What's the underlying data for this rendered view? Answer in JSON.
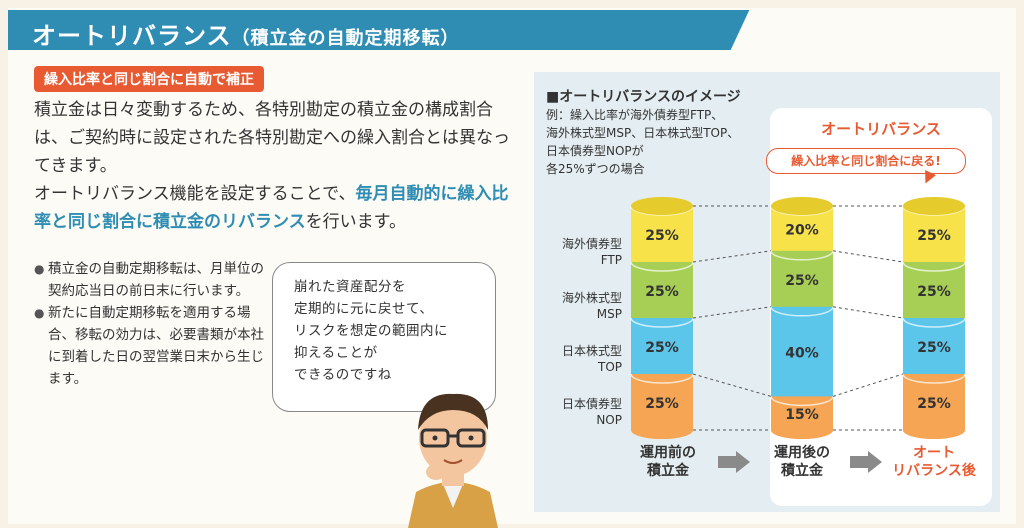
{
  "header": {
    "title_main": "オートリバランス",
    "title_sub": "（積立金の自動定期移転）"
  },
  "tag": "繰入比率と同じ割合に自動で補正",
  "paragraph": {
    "p1": "積立金は日々変動するため、各特別勘定の積立金の構成割合は、ご契約時に設定された各特別勘定への繰入割合とは異なってきます。",
    "p2_a": "オートリバランス機能を設定することで、",
    "p2_highlight": "毎月自動的に繰入比率と同じ割合に積立金のリバランス",
    "p2_b": "を行います。"
  },
  "bullets": [
    "積立金の自動定期移転は、月単位の契約応当日の前日末に行います。",
    "新たに自動定期移転を適用する場合、移転の効力は、必要書類が本社に到着した日の翌営業日末から生じます。"
  ],
  "bubble": {
    "lines": [
      "崩れた資産配分を",
      "定期的に元に戻せて、",
      "リスクを想定の範囲内に",
      "抑えることが",
      "できるのですね"
    ]
  },
  "diagram": {
    "title": "■オートリバランスのイメージ",
    "note_lines": [
      "例：繰入比率が海外債券型FTP、",
      "海外株式型MSP、日本株式型TOP、",
      "日本債券型NOPが",
      "各25%ずつの場合"
    ],
    "rebalance_label": "オートリバランス",
    "callout": "繰入比率と同じ割合に戻る!",
    "row_labels": [
      {
        "line1": "海外債券型",
        "line2": "FTP"
      },
      {
        "line1": "海外株式型",
        "line2": "MSP"
      },
      {
        "line1": "日本株式型",
        "line2": "TOP"
      },
      {
        "line1": "日本債券型",
        "line2": "NOP"
      }
    ],
    "colors": {
      "ftp": "#f7e24a",
      "msp": "#a8cf55",
      "top": "#5cc6ea",
      "nop": "#f5a553",
      "arrow": "#8a8a8a",
      "accent": "#e85a32",
      "blue": "#2f8db3"
    },
    "columns": [
      {
        "label1": "運用前の",
        "label2": "積立金",
        "label_color": "#333333",
        "segments": [
          {
            "key": "ftp",
            "value": 25,
            "text": "25%"
          },
          {
            "key": "msp",
            "value": 25,
            "text": "25%"
          },
          {
            "key": "top",
            "value": 25,
            "text": "25%"
          },
          {
            "key": "nop",
            "value": 25,
            "text": "25%"
          }
        ]
      },
      {
        "label1": "運用後の",
        "label2": "積立金",
        "label_color": "#333333",
        "segments": [
          {
            "key": "ftp",
            "value": 20,
            "text": "20%"
          },
          {
            "key": "msp",
            "value": 25,
            "text": "25%"
          },
          {
            "key": "top",
            "value": 40,
            "text": "40%"
          },
          {
            "key": "nop",
            "value": 15,
            "text": "15%"
          }
        ]
      },
      {
        "label1": "オート",
        "label2": "リバランス後",
        "label_color": "#e85a32",
        "segments": [
          {
            "key": "ftp",
            "value": 25,
            "text": "25%"
          },
          {
            "key": "msp",
            "value": 25,
            "text": "25%"
          },
          {
            "key": "top",
            "value": 25,
            "text": "25%"
          },
          {
            "key": "nop",
            "value": 25,
            "text": "25%"
          }
        ]
      }
    ]
  }
}
